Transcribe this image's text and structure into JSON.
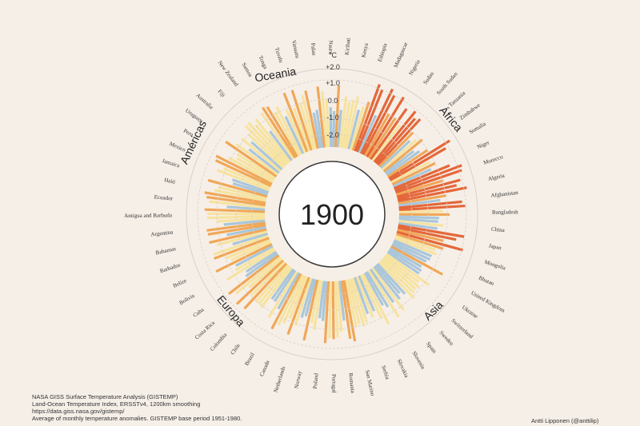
{
  "chart_data": {
    "type": "bar",
    "layout": "radial",
    "title": "",
    "year_label": "1900",
    "unit_label": "°C",
    "ylim": [
      -2.0,
      2.0
    ],
    "tick_labels": [
      "+2.0",
      "+1.0",
      "0.0",
      "-1.0",
      "-2.0"
    ],
    "region_labels": [
      "Oceania",
      "África",
      "Asia",
      "Europa",
      "Américas"
    ],
    "colors": {
      "cold": "#a9c6da",
      "neutral": "#f7e3a0",
      "warm": "#f0a757",
      "hot": "#e4673a",
      "ring": "#d9cfc8",
      "background": "#f6efe8"
    },
    "sample_countries_visible": [
      "Kenya",
      "Ethiopia",
      "Madagascar",
      "Nigeria",
      "Sudan",
      "South Sudan",
      "Tanzania",
      "Zimbabwe",
      "Somalia",
      "Niger",
      "Morocco",
      "Algeria",
      "Afghanistan",
      "Bangladesh",
      "China",
      "Japan",
      "Mongolia",
      "Bhutan",
      "United Kingdom",
      "Ukraine",
      "Switzerland",
      "Sweden",
      "Spain",
      "Slovenia",
      "Slovakia",
      "Serbia",
      "San Marino",
      "Romania",
      "Portugal",
      "Poland",
      "Norway",
      "Netherlands",
      "Canada",
      "Brazil",
      "Chile",
      "Colombia",
      "Costa Rica",
      "Cuba",
      "Bolivia",
      "Belize",
      "Barbados",
      "Bahamas",
      "Argentina",
      "Antigua and Barbuda",
      "Ecuador",
      "Haiti",
      "Jamaica",
      "Mexico",
      "Peru",
      "Uruguay",
      "Australia",
      "Fiji",
      "New Zealand",
      "Samoa",
      "Tonga",
      "Tuvalu",
      "Vanuatu",
      "Palau",
      "Nauru",
      "Kiribati"
    ]
  },
  "footer": {
    "source_lines": [
      "NASA GISS Surface Temperature Analysis (GISTEMP)",
      "Land-Ocean Temperature Index, ERSSTv4, 1200km smoothing",
      "https://data.giss.nasa.gov/gistemp/",
      "Average of monthly temperature anomalies. GISTEMP base period 1951-1980."
    ],
    "credit": "Antti Lipponen (@anttilip)"
  }
}
